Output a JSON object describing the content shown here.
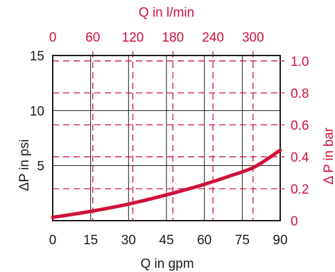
{
  "chart_data": {
    "type": "line",
    "colors": {
      "curve": "#d0103a",
      "primary_axis": "#1a1a1a",
      "secondary_axis": "#d0103a"
    },
    "x_bottom": {
      "label": "Q in gpm",
      "range": [
        0,
        90
      ],
      "ticks": [
        0,
        15,
        30,
        45,
        60,
        75,
        90
      ]
    },
    "x_top": {
      "label": "Q in l/min",
      "range": [
        0,
        340.7
      ],
      "ticks": [
        0,
        60,
        120,
        180,
        240,
        300
      ]
    },
    "y_left": {
      "label": "ΔP in psi",
      "range": [
        0,
        15
      ],
      "ticks": [
        5,
        10,
        15
      ]
    },
    "y_right": {
      "label": "Δ P in bar",
      "range": [
        0,
        1.034
      ],
      "ticks": [
        0,
        0.2,
        0.4,
        0.6,
        0.8,
        1.0
      ],
      "tick_labels": [
        "0",
        "0.2",
        "0.4",
        "0.6",
        "0.8",
        "1.0"
      ]
    },
    "grid": true,
    "series": [
      {
        "x": [
          0,
          10,
          20,
          30,
          40,
          50,
          60,
          70,
          80,
          90
        ],
        "y": [
          0.3,
          0.65,
          1.05,
          1.5,
          2.05,
          2.65,
          3.3,
          4.05,
          4.9,
          6.4
        ]
      }
    ]
  }
}
